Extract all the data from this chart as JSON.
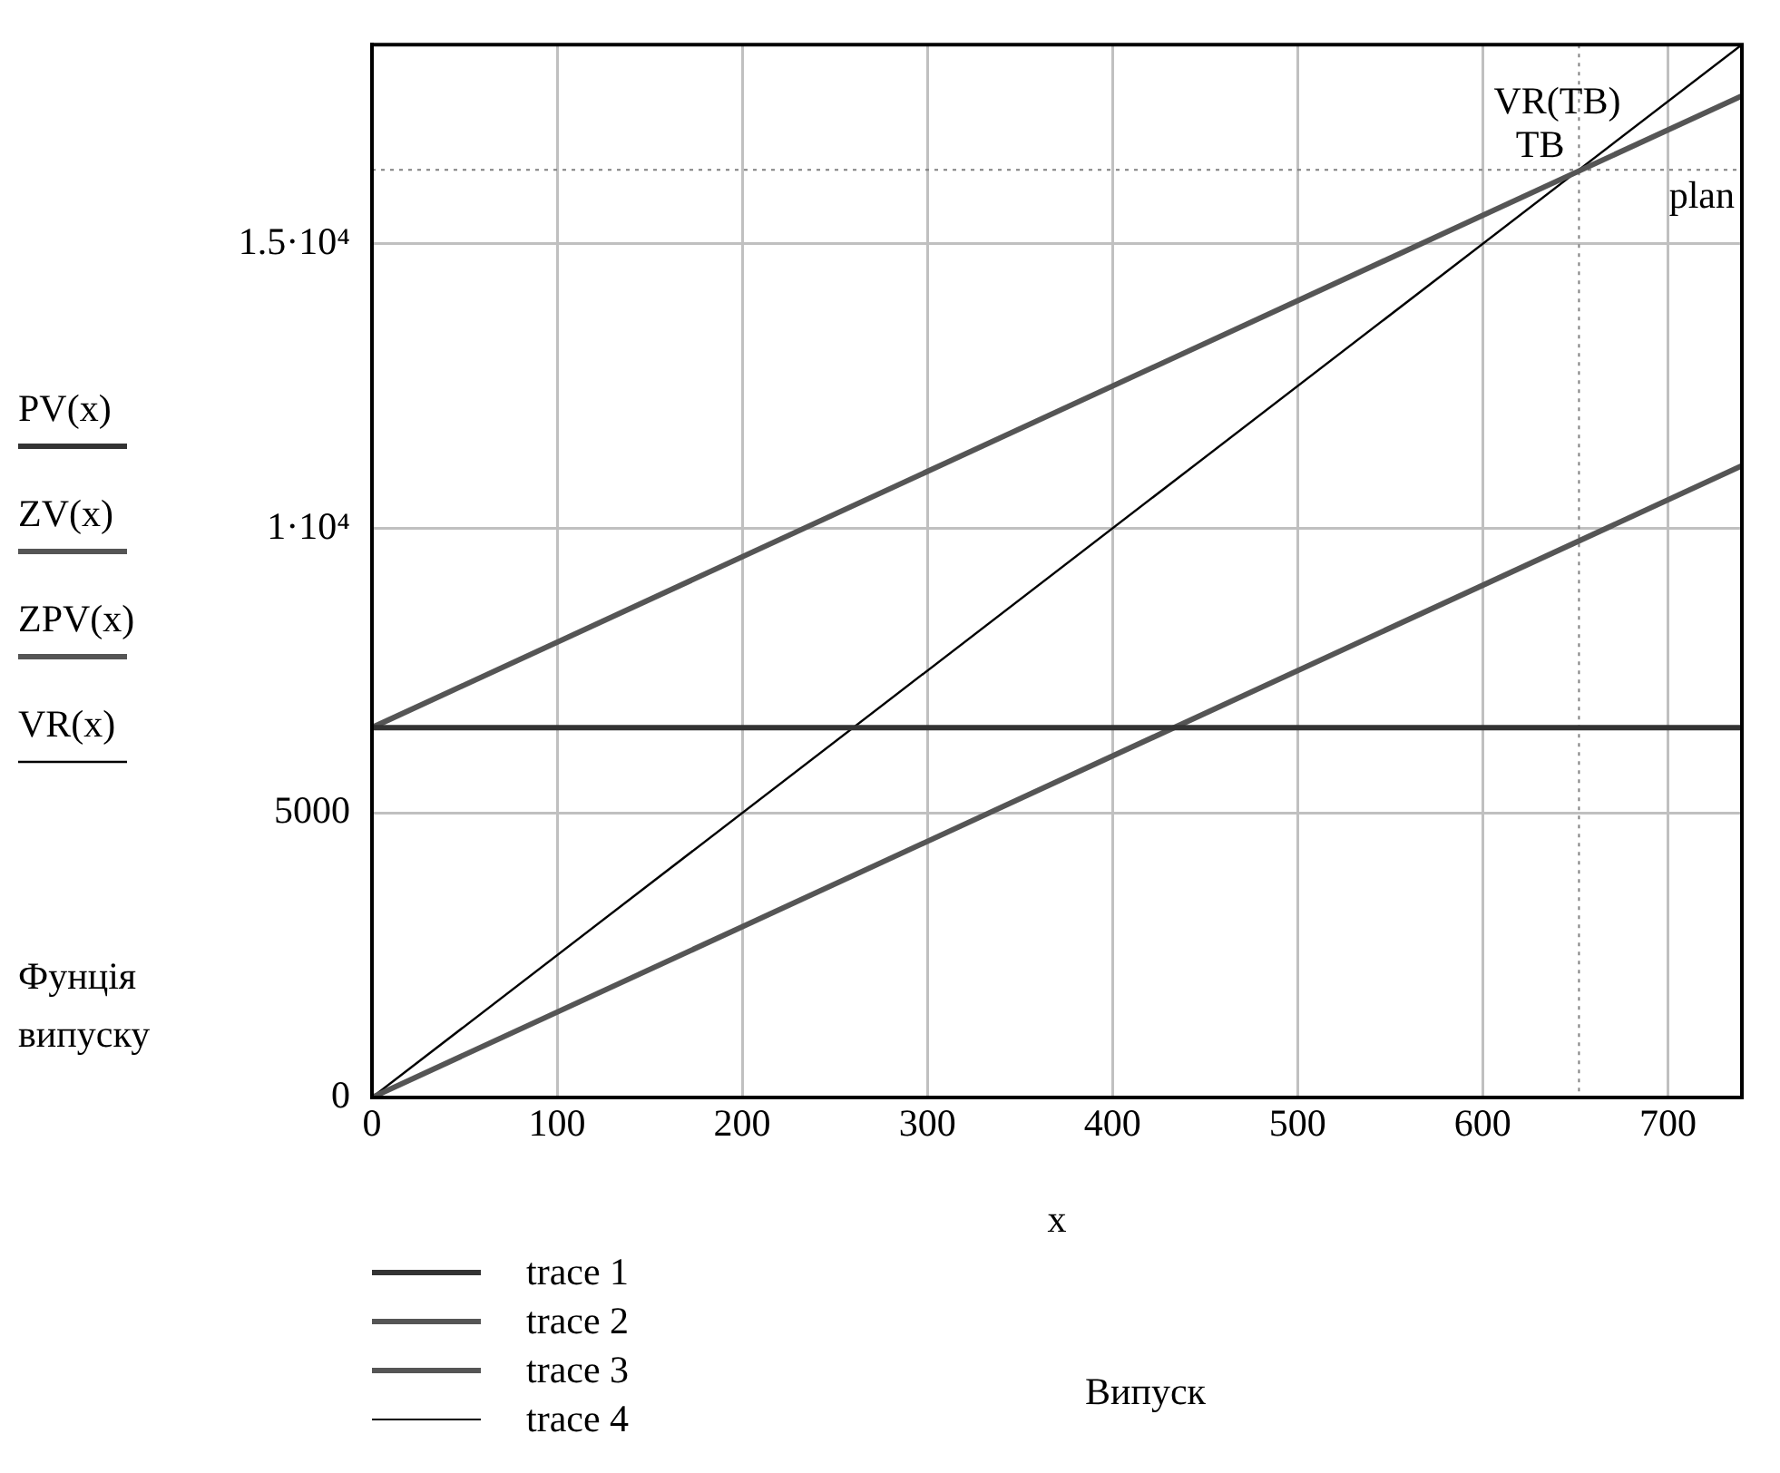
{
  "chart_data": {
    "type": "line",
    "xlabel": "x",
    "ylabel": "Фунція випуску",
    "x": [
      0,
      740
    ],
    "series": [
      {
        "name": "trace 1",
        "color": "#333333",
        "values": [
          6500,
          6500
        ]
      },
      {
        "name": "trace 2",
        "color": "#555555",
        "values": [
          6500,
          17600
        ]
      },
      {
        "name": "trace 3",
        "color": "#555555",
        "values": [
          0,
          11100
        ]
      },
      {
        "name": "trace 4",
        "color": "#000000",
        "values": [
          0,
          18500
        ]
      }
    ],
    "xlim": [
      0,
      740
    ],
    "xticks": [
      0,
      100,
      200,
      300,
      400,
      500,
      600,
      700
    ],
    "ylim": [
      0,
      18500
    ],
    "yticks": [
      0,
      5000,
      {
        "value": 10000,
        "label": "1·10⁴"
      },
      {
        "value": 15000,
        "label": "1.5·10⁴"
      }
    ],
    "ref_lines": [
      {
        "axis": "x",
        "value": 652,
        "label": "TB",
        "color": "#808080",
        "line_style": "dotted"
      },
      {
        "axis": "y",
        "value": 16300,
        "label": "VR(TB)",
        "color": "#808080",
        "line_style": "dotted"
      }
    ],
    "annotations": [
      "PV(x)",
      "ZV(x)",
      "ZPV(x)",
      "VR(x)",
      "plan",
      "Випуск"
    ],
    "grid": true,
    "legend": "bottom left",
    "marker": "none",
    "line_style": "solid"
  }
}
